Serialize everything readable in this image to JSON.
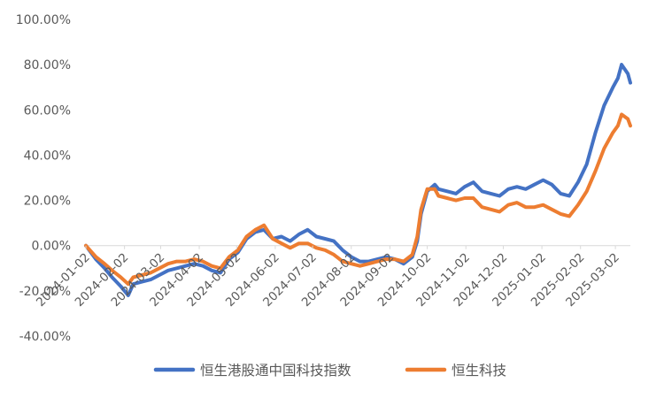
{
  "chart_data": {
    "type": "line",
    "title": "",
    "xlabel": "",
    "ylabel": "",
    "ylim": [
      -40,
      100
    ],
    "y_ticks": [
      "100.00%",
      "80.00%",
      "60.00%",
      "40.00%",
      "20.00%",
      "0.00%",
      "-20.00%",
      "-40.00%"
    ],
    "x_ticks": [
      "2024-01-02",
      "2024-02-02",
      "2024-03-02",
      "2024-04-02",
      "2024-05-02",
      "2024-06-02",
      "2024-07-02",
      "2024-08-02",
      "2024-09-02",
      "2024-10-02",
      "2024-11-02",
      "2024-12-02",
      "2025-01-02",
      "2025-02-02",
      "2025-03-02"
    ],
    "grid": false,
    "legend_position": "bottom",
    "series": [
      {
        "name": "恒生港股通中国科技指数",
        "color": "#4472C4",
        "points": [
          [
            "2024-01-02",
            0
          ],
          [
            "2024-01-10",
            -6
          ],
          [
            "2024-01-17",
            -10
          ],
          [
            "2024-01-23",
            -14
          ],
          [
            "2024-01-30",
            -18
          ],
          [
            "2024-02-05",
            -22
          ],
          [
            "2024-02-09",
            -17
          ],
          [
            "2024-02-16",
            -16
          ],
          [
            "2024-02-23",
            -15
          ],
          [
            "2024-03-01",
            -13
          ],
          [
            "2024-03-08",
            -11
          ],
          [
            "2024-03-15",
            -10
          ],
          [
            "2024-03-22",
            -9
          ],
          [
            "2024-03-29",
            -8
          ],
          [
            "2024-04-05",
            -9
          ],
          [
            "2024-04-12",
            -11
          ],
          [
            "2024-04-19",
            -12
          ],
          [
            "2024-04-26",
            -6
          ],
          [
            "2024-05-03",
            -3
          ],
          [
            "2024-05-10",
            3
          ],
          [
            "2024-05-17",
            6
          ],
          [
            "2024-05-24",
            7
          ],
          [
            "2024-05-31",
            3
          ],
          [
            "2024-06-07",
            4
          ],
          [
            "2024-06-14",
            2
          ],
          [
            "2024-06-21",
            5
          ],
          [
            "2024-06-28",
            7
          ],
          [
            "2024-07-05",
            4
          ],
          [
            "2024-07-12",
            3
          ],
          [
            "2024-07-19",
            2
          ],
          [
            "2024-07-26",
            -2
          ],
          [
            "2024-08-02",
            -5
          ],
          [
            "2024-08-09",
            -7
          ],
          [
            "2024-08-16",
            -7
          ],
          [
            "2024-08-23",
            -6
          ],
          [
            "2024-08-30",
            -5
          ],
          [
            "2024-09-06",
            -6
          ],
          [
            "2024-09-13",
            -8
          ],
          [
            "2024-09-20",
            -5
          ],
          [
            "2024-09-24",
            2
          ],
          [
            "2024-09-27",
            14
          ],
          [
            "2024-10-02",
            24
          ],
          [
            "2024-10-08",
            27
          ],
          [
            "2024-10-11",
            25
          ],
          [
            "2024-10-18",
            24
          ],
          [
            "2024-10-25",
            23
          ],
          [
            "2024-11-01",
            26
          ],
          [
            "2024-11-08",
            28
          ],
          [
            "2024-11-15",
            24
          ],
          [
            "2024-11-22",
            23
          ],
          [
            "2024-11-29",
            22
          ],
          [
            "2024-12-06",
            25
          ],
          [
            "2024-12-13",
            26
          ],
          [
            "2024-12-20",
            25
          ],
          [
            "2024-12-27",
            27
          ],
          [
            "2025-01-03",
            29
          ],
          [
            "2025-01-10",
            27
          ],
          [
            "2025-01-17",
            23
          ],
          [
            "2025-01-24",
            22
          ],
          [
            "2025-01-31",
            28
          ],
          [
            "2025-02-07",
            36
          ],
          [
            "2025-02-14",
            50
          ],
          [
            "2025-02-21",
            62
          ],
          [
            "2025-02-28",
            70
          ],
          [
            "2025-03-04",
            74
          ],
          [
            "2025-03-07",
            80
          ],
          [
            "2025-03-12",
            76
          ],
          [
            "2025-03-14",
            72
          ]
        ]
      },
      {
        "name": "恒生科技",
        "color": "#ED7D31",
        "points": [
          [
            "2024-01-02",
            0
          ],
          [
            "2024-01-10",
            -5
          ],
          [
            "2024-01-17",
            -8
          ],
          [
            "2024-01-23",
            -11
          ],
          [
            "2024-01-30",
            -14
          ],
          [
            "2024-02-05",
            -17
          ],
          [
            "2024-02-09",
            -14
          ],
          [
            "2024-02-16",
            -13
          ],
          [
            "2024-02-23",
            -12
          ],
          [
            "2024-03-01",
            -10
          ],
          [
            "2024-03-08",
            -8
          ],
          [
            "2024-03-15",
            -7
          ],
          [
            "2024-03-22",
            -7
          ],
          [
            "2024-03-29",
            -6
          ],
          [
            "2024-04-05",
            -7
          ],
          [
            "2024-04-12",
            -9
          ],
          [
            "2024-04-19",
            -10
          ],
          [
            "2024-04-26",
            -5
          ],
          [
            "2024-05-03",
            -2
          ],
          [
            "2024-05-10",
            4
          ],
          [
            "2024-05-17",
            7
          ],
          [
            "2024-05-24",
            9
          ],
          [
            "2024-05-31",
            3
          ],
          [
            "2024-06-07",
            1
          ],
          [
            "2024-06-14",
            -1
          ],
          [
            "2024-06-21",
            1
          ],
          [
            "2024-06-28",
            1
          ],
          [
            "2024-07-05",
            -1
          ],
          [
            "2024-07-12",
            -2
          ],
          [
            "2024-07-19",
            -4
          ],
          [
            "2024-07-26",
            -7
          ],
          [
            "2024-08-02",
            -8
          ],
          [
            "2024-08-09",
            -9
          ],
          [
            "2024-08-16",
            -8
          ],
          [
            "2024-08-23",
            -7
          ],
          [
            "2024-08-30",
            -6
          ],
          [
            "2024-09-06",
            -6
          ],
          [
            "2024-09-13",
            -7
          ],
          [
            "2024-09-20",
            -4
          ],
          [
            "2024-09-24",
            4
          ],
          [
            "2024-09-27",
            16
          ],
          [
            "2024-10-02",
            25
          ],
          [
            "2024-10-08",
            25
          ],
          [
            "2024-10-11",
            22
          ],
          [
            "2024-10-18",
            21
          ],
          [
            "2024-10-25",
            20
          ],
          [
            "2024-11-01",
            21
          ],
          [
            "2024-11-08",
            21
          ],
          [
            "2024-11-15",
            17
          ],
          [
            "2024-11-22",
            16
          ],
          [
            "2024-11-29",
            15
          ],
          [
            "2024-12-06",
            18
          ],
          [
            "2024-12-13",
            19
          ],
          [
            "2024-12-20",
            17
          ],
          [
            "2024-12-27",
            17
          ],
          [
            "2025-01-03",
            18
          ],
          [
            "2025-01-10",
            16
          ],
          [
            "2025-01-17",
            14
          ],
          [
            "2025-01-24",
            13
          ],
          [
            "2025-01-31",
            18
          ],
          [
            "2025-02-07",
            24
          ],
          [
            "2025-02-14",
            33
          ],
          [
            "2025-02-21",
            43
          ],
          [
            "2025-02-28",
            50
          ],
          [
            "2025-03-04",
            53
          ],
          [
            "2025-03-07",
            58
          ],
          [
            "2025-03-12",
            56
          ],
          [
            "2025-03-14",
            53
          ]
        ]
      }
    ]
  }
}
